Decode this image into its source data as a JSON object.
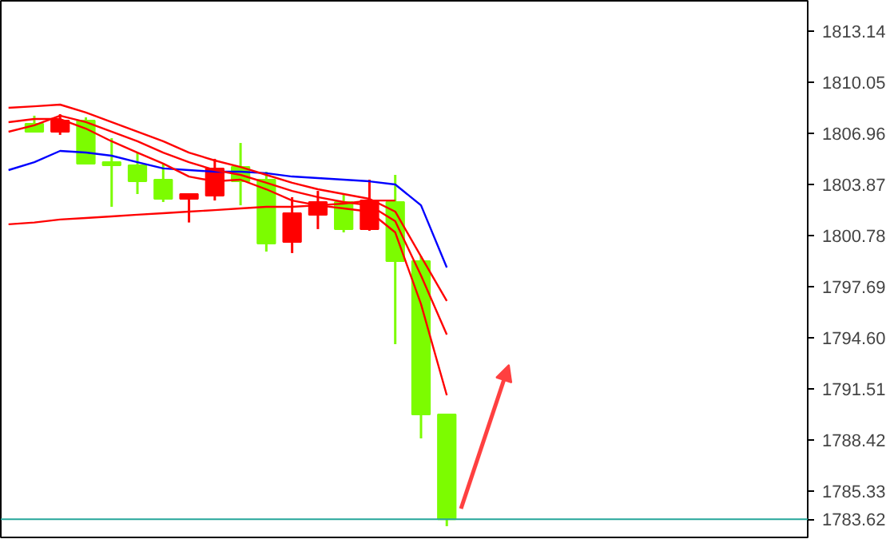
{
  "chart_data": {
    "type": "candlestick",
    "categories": [
      null,
      null,
      null,
      null,
      null,
      null,
      null,
      null,
      null,
      null,
      null,
      null,
      null,
      null,
      null,
      null,
      null,
      null,
      null,
      null,
      null,
      null,
      null,
      null,
      null,
      null,
      null,
      null,
      null,
      null,
      null
    ],
    "ohlc": [
      null,
      [
        1807.54,
        1808.03,
        1807.06,
        1807.06
      ],
      [
        1807.06,
        1808.12,
        1806.87,
        1807.74
      ],
      [
        1807.74,
        1807.93,
        1805.13,
        1805.13
      ],
      [
        1805.22,
        1806.67,
        1802.52,
        1805.03
      ],
      [
        1805.03,
        1805.8,
        1803.29,
        1804.06
      ],
      [
        1804.16,
        1805.13,
        1802.81,
        1803.0
      ],
      [
        1803.0,
        1803.29,
        1801.57,
        1803.29
      ],
      [
        1803.19,
        1805.42,
        1802.9,
        1804.84
      ],
      [
        1804.93,
        1806.38,
        1802.61,
        1804.06
      ],
      [
        1804.16,
        1804.64,
        1799.81,
        1800.3
      ],
      [
        1800.39,
        1803.1,
        1799.72,
        1802.13
      ],
      [
        1802.04,
        1803.48,
        1801.17,
        1802.81
      ],
      [
        1802.81,
        1803.29,
        1800.97,
        1801.17
      ],
      [
        1801.17,
        1804.16,
        1801.07,
        1802.9
      ],
      [
        1802.81,
        1804.45,
        1794.21,
        1799.23
      ],
      [
        1799.23,
        1799.52,
        1788.51,
        1789.96
      ],
      [
        1789.96,
        1789.96,
        1783.2,
        1783.62
      ],
      null,
      null,
      null,
      null,
      null,
      null,
      null,
      null,
      null,
      null,
      null,
      null,
      null
    ],
    "colors": [
      null,
      "#7cfc00",
      "#ff0000",
      "#7cfc00",
      "#7cfc00",
      "#7cfc00",
      "#7cfc00",
      "#ff0000",
      "#ff0000",
      "#7cfc00",
      "#7cfc00",
      "#ff0000",
      "#ff0000",
      "#7cfc00",
      "#ff0000",
      "#7cfc00",
      "#7cfc00",
      "#7cfc00",
      null,
      null,
      null,
      null,
      null,
      null,
      null,
      null,
      null,
      null,
      null,
      null,
      null
    ],
    "series": [
      {
        "type": "line",
        "color": "#0000ff",
        "values": [
          1804.74,
          1805.22,
          1805.9,
          1805.8,
          1805.61,
          1805.22,
          1804.84,
          1804.74,
          1804.64,
          1804.64,
          1804.55,
          1804.35,
          1804.26,
          1804.16,
          1804.06,
          1803.87,
          1802.61,
          1798.85,
          null,
          null,
          null,
          null,
          null,
          null,
          null,
          null,
          null,
          null,
          null,
          null,
          null
        ]
      },
      {
        "type": "line",
        "color": "#ff0000",
        "values": [
          1807.64,
          1807.83,
          1807.83,
          1807.25,
          1806.48,
          1805.8,
          1805.13,
          1804.35,
          1804.06,
          1804.16,
          1803.58,
          1802.9,
          1802.61,
          1802.42,
          1802.23,
          1800.97,
          1796.63,
          1791.12,
          null,
          null,
          null,
          null,
          null,
          null,
          null,
          null,
          null,
          null,
          null,
          null,
          null
        ]
      },
      {
        "type": "line",
        "color": "#ff0000",
        "values": [
          1807.06,
          1807.45,
          1808.03,
          1807.64,
          1807.06,
          1806.48,
          1805.8,
          1805.22,
          1804.74,
          1804.45,
          1803.97,
          1803.48,
          1803.1,
          1802.81,
          1802.61,
          1801.65,
          1798.36,
          1794.79,
          null,
          null,
          null,
          null,
          null,
          null,
          null,
          null,
          null,
          null,
          null,
          null,
          null
        ]
      },
      {
        "type": "line",
        "color": "#ff0000",
        "values": [
          1808.51,
          1808.6,
          1808.7,
          1808.22,
          1807.64,
          1807.06,
          1806.48,
          1805.8,
          1805.32,
          1804.93,
          1804.45,
          1803.97,
          1803.58,
          1803.29,
          1803.0,
          1802.23,
          1799.52,
          1796.82,
          null,
          null,
          null,
          null,
          null,
          null,
          null,
          null,
          null,
          null,
          null,
          null,
          null
        ]
      },
      {
        "type": "line",
        "color": "#ff0000",
        "values": [
          1801.46,
          1801.57,
          1801.75,
          1801.84,
          1801.94,
          1802.04,
          1802.13,
          1802.23,
          1802.32,
          1802.42,
          1802.52,
          1802.52,
          1802.61,
          1802.71,
          1802.9,
          1802.9,
          null,
          null,
          null,
          null,
          null,
          null,
          null,
          null,
          null,
          null,
          null,
          null,
          null,
          null,
          null
        ]
      }
    ],
    "ylim": [
      1782.52,
      1814.98
    ],
    "yticks": [
      {
        "value": 1813.14,
        "label": "1813.14"
      },
      {
        "value": 1810.05,
        "label": "1810.05"
      },
      {
        "value": 1806.96,
        "label": "1806.96"
      },
      {
        "value": 1803.87,
        "label": "1803.87"
      },
      {
        "value": 1800.78,
        "label": "1800.78"
      },
      {
        "value": 1797.69,
        "label": "1797.69"
      },
      {
        "value": 1794.6,
        "label": "1794.60"
      },
      {
        "value": 1791.51,
        "label": "1791.51"
      },
      {
        "value": 1788.42,
        "label": "1788.42"
      },
      {
        "value": 1785.33,
        "label": "1785.33"
      }
    ],
    "ref_lines": [
      {
        "axis": "y",
        "value": 1783.62,
        "label": "1783.62",
        "color": "#26a69a"
      }
    ],
    "tick_labels": "y",
    "grid": false
  }
}
